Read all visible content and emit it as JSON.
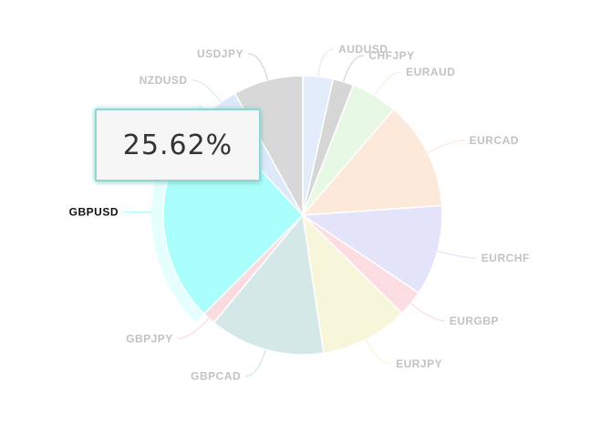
{
  "chart_data": {
    "type": "pie",
    "title": "",
    "highlighted": "GBPUSD",
    "slices": [
      {
        "label": "AUDUSD",
        "value": 3.5,
        "color": "#e3ecfa"
      },
      {
        "label": "CHFJPY",
        "value": 2.4,
        "color": "#d6d6d6"
      },
      {
        "label": "EURAUD",
        "value": 5.4,
        "color": "#e7f8e4"
      },
      {
        "label": "EURCAD",
        "value": 12.6,
        "color": "#fde9d9"
      },
      {
        "label": "EURCHF",
        "value": 10.5,
        "color": "#e3e4fa"
      },
      {
        "label": "EURGBP",
        "value": 3.0,
        "color": "#fbdde2"
      },
      {
        "label": "EURJPY",
        "value": 10.2,
        "color": "#f8f6da"
      },
      {
        "label": "GBPCAD",
        "value": 13.4,
        "color": "#d5e8e8"
      },
      {
        "label": "GBPJPY",
        "value": 1.5,
        "color": "#fadbe2"
      },
      {
        "label": "GBPUSD",
        "value": 25.62,
        "color": "#aafefc"
      },
      {
        "label": "NZDUSD",
        "value": 3.8,
        "color": "#dde9fa"
      },
      {
        "label": "USDJPY",
        "value": 8.08,
        "color": "#d8d8d8"
      }
    ]
  },
  "tooltip": {
    "value_text": "25.62%"
  }
}
